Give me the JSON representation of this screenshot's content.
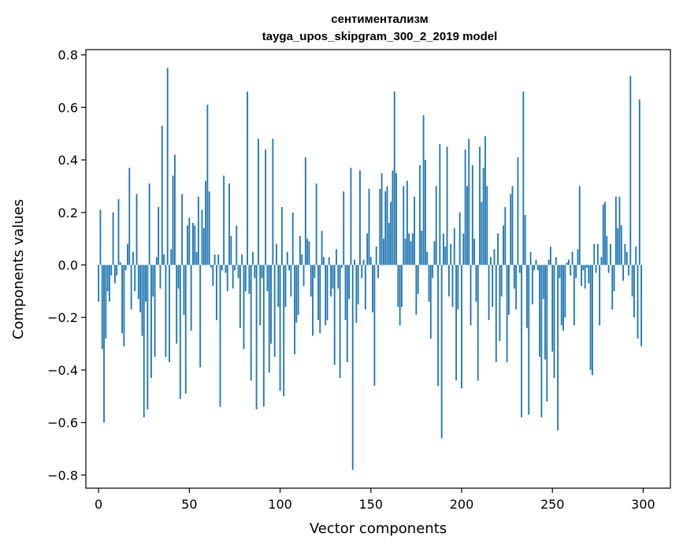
{
  "chart_data": {
    "type": "bar",
    "title_line1": "сентиментализм",
    "title_line2": "tayga_upos_skipgram_300_2_2019 model",
    "xlabel": "Vector components",
    "ylabel": "Components values",
    "xlim": [
      -7,
      315
    ],
    "ylim": [
      -0.85,
      0.82
    ],
    "xticks": [
      0,
      50,
      100,
      150,
      200,
      250,
      300
    ],
    "yticks": [
      -0.8,
      -0.6,
      -0.4,
      -0.2,
      0.0,
      0.2,
      0.4,
      0.6,
      0.8
    ],
    "ytick_labels": [
      "−0.8",
      "−0.6",
      "−0.4",
      "−0.2",
      "0.0",
      "0.2",
      "0.4",
      "0.6",
      "0.8"
    ],
    "grid": false,
    "bar_color": "#1f77b4",
    "values": [
      -0.14,
      0.21,
      -0.32,
      -0.6,
      -0.28,
      -0.1,
      -0.14,
      -0.04,
      0.2,
      -0.07,
      -0.04,
      0.25,
      0.01,
      -0.26,
      -0.31,
      -0.02,
      0.08,
      0.37,
      -0.17,
      0.05,
      -0.1,
      0.27,
      -0.13,
      -0.18,
      -0.27,
      -0.58,
      -0.14,
      -0.55,
      0.31,
      -0.43,
      -0.12,
      -0.35,
      0.03,
      0.22,
      -0.09,
      0.53,
      0.04,
      -0.35,
      0.75,
      -0.37,
      0.06,
      0.34,
      0.42,
      -0.3,
      -0.09,
      -0.51,
      0.27,
      -0.19,
      -0.49,
      0.15,
      0.18,
      -0.25,
      0.16,
      0.15,
      0.05,
      0.26,
      -0.39,
      0.21,
      0.14,
      0.32,
      0.61,
      0.28,
      -0.01,
      -0.08,
      0.04,
      -0.21,
      0.04,
      -0.54,
      -0.02,
      0.34,
      -0.03,
      -0.1,
      0.31,
      0.11,
      -0.09,
      -0.02,
      0.15,
      -0.05,
      -0.24,
      0.04,
      -0.32,
      -0.1,
      0.66,
      -0.11,
      -0.44,
      0.05,
      -0.05,
      -0.55,
      0.48,
      -0.23,
      -0.05,
      -0.54,
      0.44,
      -0.1,
      -0.41,
      -0.3,
      0.48,
      -0.35,
      0.08,
      -0.16,
      -0.48,
      0.22,
      -0.5,
      -0.16,
      0.05,
      -0.02,
      -0.12,
      0.2,
      -0.34,
      -0.22,
      -0.19,
      0.11,
      0.04,
      -0.08,
      0.41,
      0.1,
      0.09,
      -0.12,
      -0.27,
      -0.05,
      0.31,
      -0.21,
      -0.26,
      0.13,
      0.03,
      -0.23,
      -0.21,
      0.03,
      -0.12,
      -0.09,
      -0.38,
      0.06,
      -0.09,
      -0.43,
      -0.01,
      0.28,
      -0.21,
      -0.37,
      -0.13,
      0.37,
      -0.78,
      0.02,
      -0.22,
      -0.15,
      0.36,
      -0.05,
      0.02,
      -0.17,
      0.12,
      0.29,
      0.03,
      -0.18,
      -0.46,
      0.07,
      -0.05,
      0.29,
      0.35,
      0.1,
      0.28,
      0.3,
      0.16,
      0.24,
      0.36,
      0.66,
      0.35,
      -0.16,
      -0.23,
      -0.16,
      0.3,
      0.1,
      0.32,
      0.12,
      0.09,
      0.12,
      0.26,
      -0.19,
      -0.11,
      0.38,
      0.13,
      0.57,
      0.4,
      0.05,
      -0.14,
      -0.28,
      -0.05,
      0.09,
      0.3,
      -0.46,
      0.46,
      -0.66,
      0.12,
      0.07,
      0.45,
      -0.12,
      0.08,
      -0.16,
      0.14,
      -0.44,
      -0.17,
      0.2,
      -0.47,
      0.12,
      0.44,
      0.3,
      0.48,
      -0.23,
      0.38,
      0.1,
      -0.14,
      -0.44,
      0.45,
      0.24,
      0.37,
      0.49,
      0.3,
      -0.21,
      0.03,
      -0.16,
      0.06,
      -0.37,
      0.12,
      -0.29,
      -0.12,
      0.15,
      0.22,
      -0.37,
      -0.19,
      0.27,
      0.3,
      -0.09,
      -0.17,
      0.41,
      -0.03,
      -0.58,
      0.66,
      0.19,
      -0.24,
      -0.57,
      0.05,
      -0.15,
      -0.02,
      0.02,
      -0.02,
      -0.35,
      -0.58,
      -0.13,
      -0.36,
      -0.52,
      0.02,
      0.07,
      -0.33,
      -0.43,
      0.03,
      -0.63,
      -0.05,
      -0.23,
      -0.25,
      -0.2,
      0.01,
      0.02,
      -0.04,
      0.05,
      -0.23,
      -0.05,
      0.06,
      0.3,
      -0.08,
      -0.02,
      -0.09,
      -0.01,
      -0.07,
      -0.4,
      -0.42,
      0.08,
      -0.03,
      0.08,
      -0.23,
      0.03,
      0.23,
      0.24,
      0.11,
      -0.03,
      0.08,
      -0.17,
      -0.1,
      0.26,
      0.14,
      0.26,
      0.15,
      -0.06,
      0.08,
      0.05,
      -0.04,
      0.72,
      -0.12,
      -0.2,
      0.07,
      -0.28,
      0.63,
      -0.31
    ]
  }
}
